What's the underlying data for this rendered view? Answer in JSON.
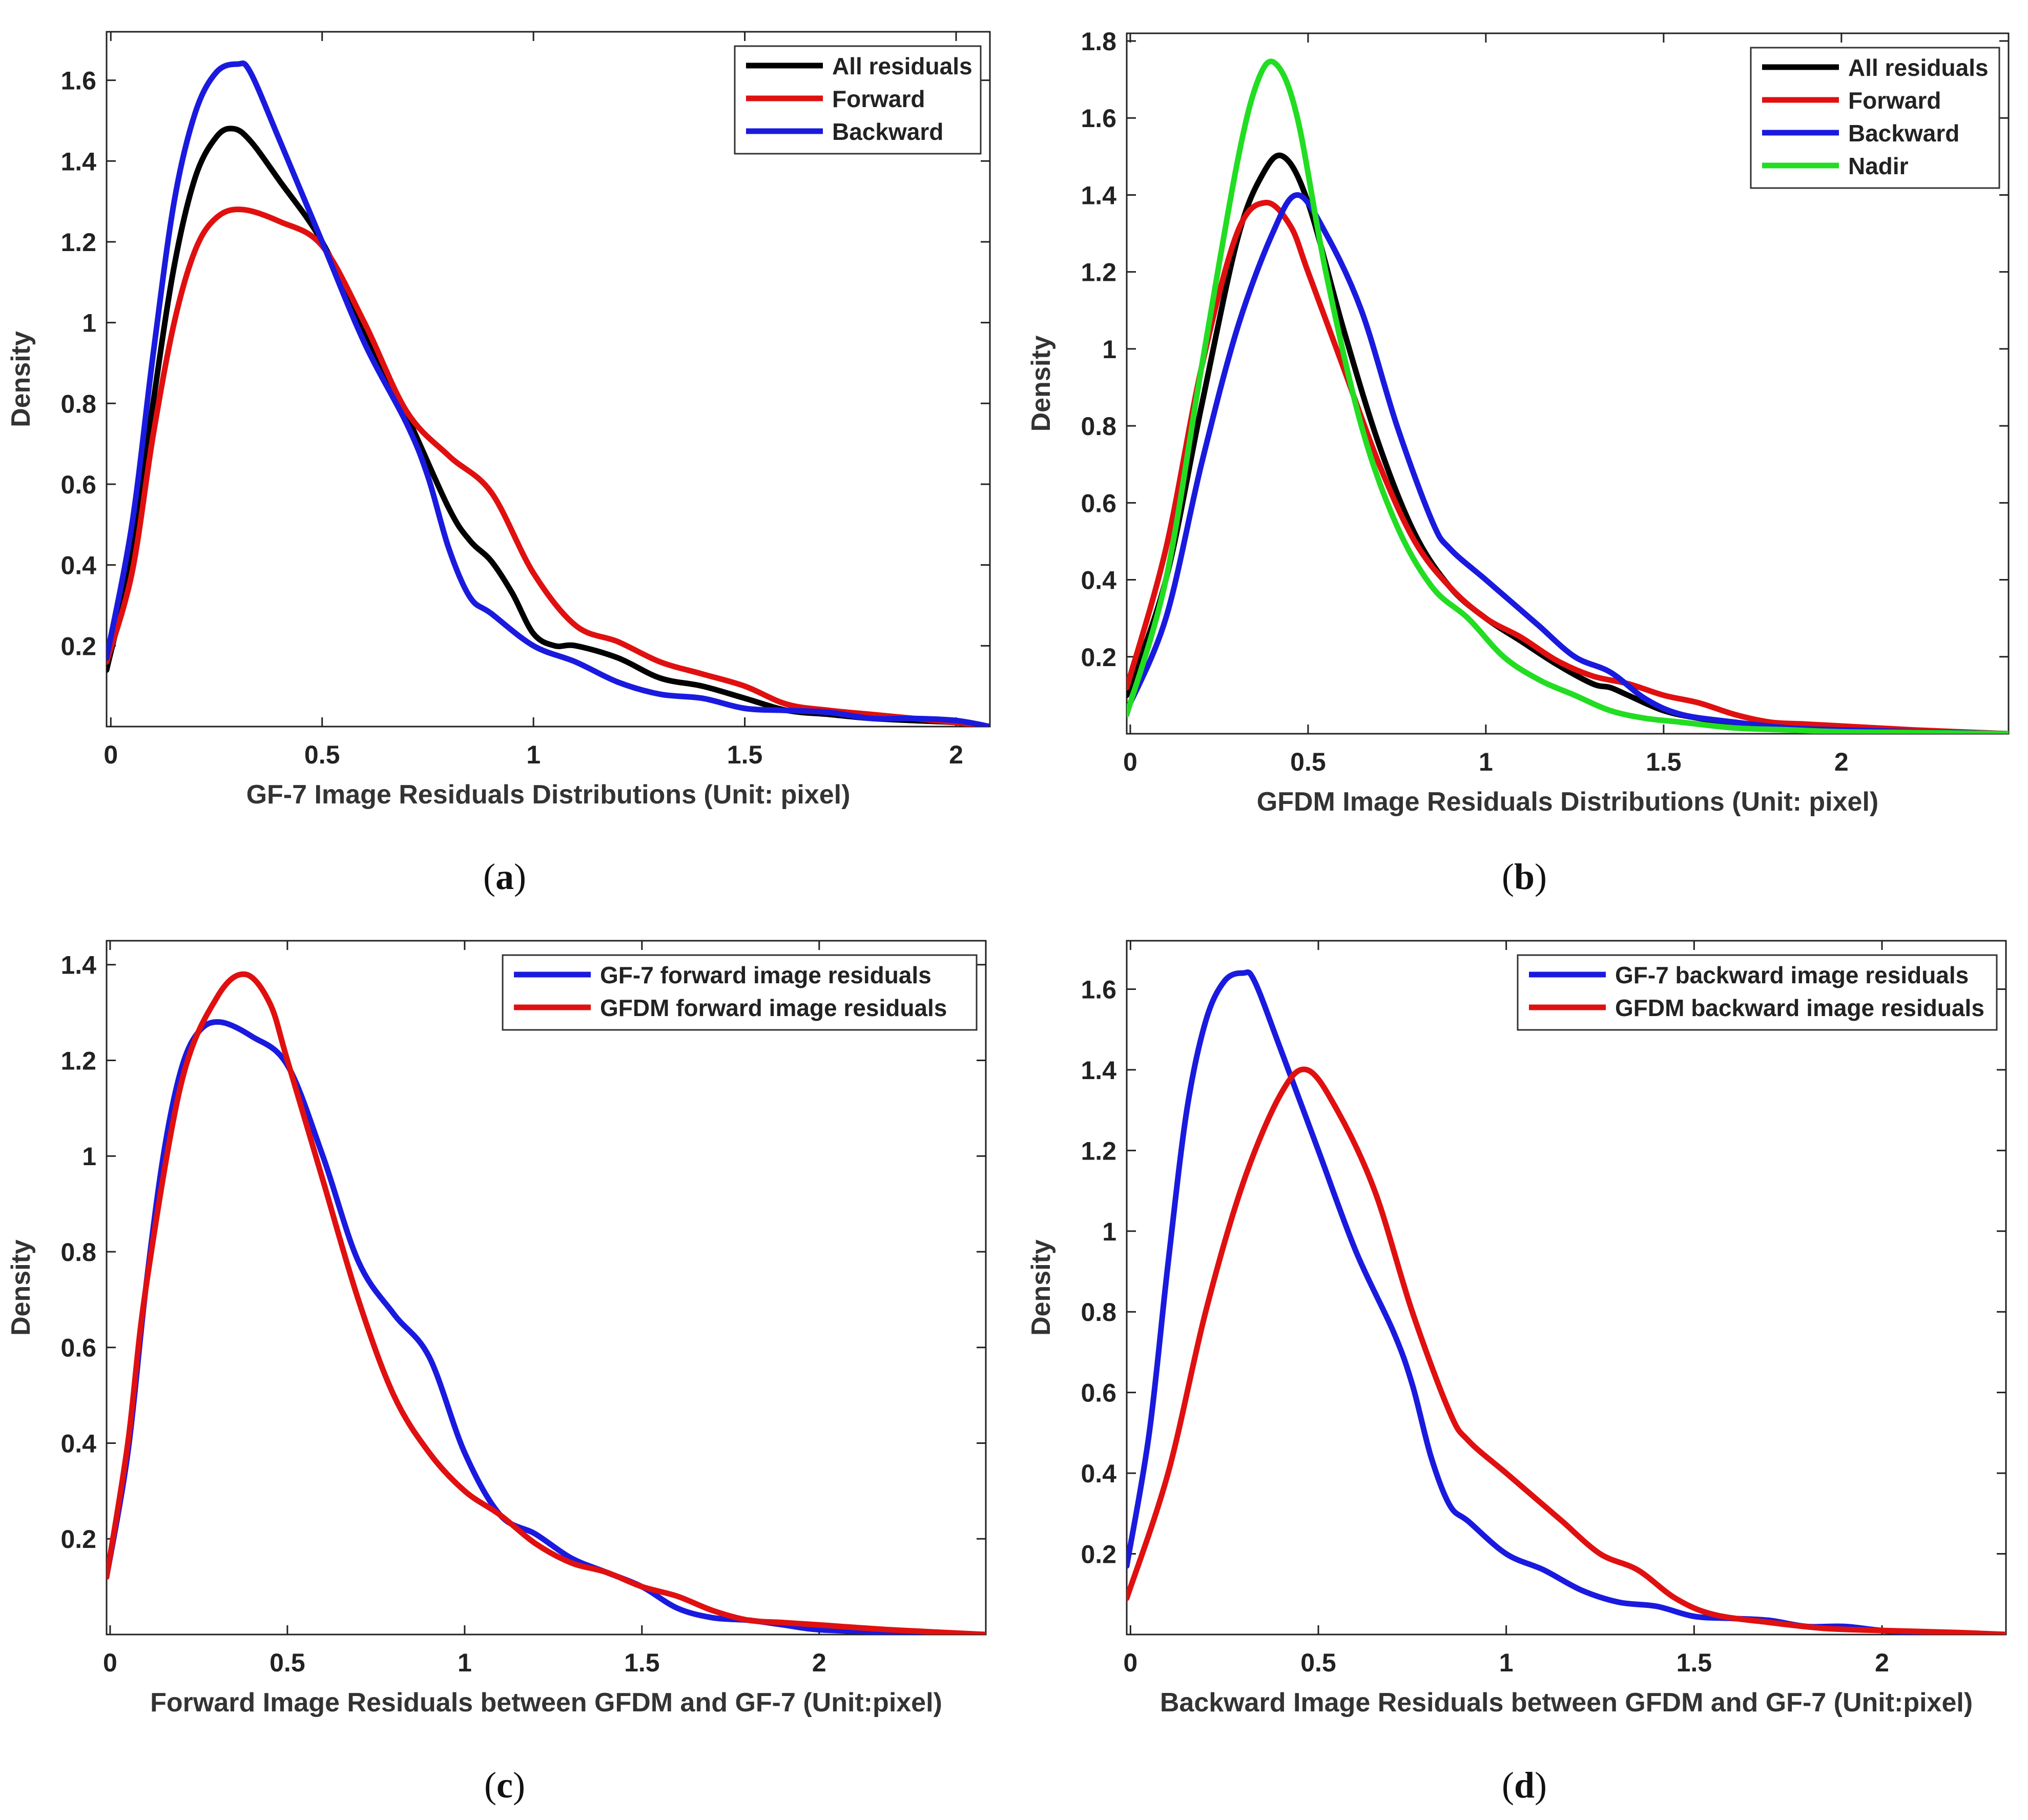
{
  "figure": {
    "panel_labels": [
      "a",
      "b",
      "c",
      "d"
    ]
  },
  "chart_data": [
    {
      "type": "line",
      "panel": "a",
      "title": "",
      "xlabel": "GF-7 Image Residuals Distributions (Unit: pixel)",
      "ylabel": "Density",
      "xlim": [
        -0.01,
        2.08
      ],
      "ylim": [
        0.0,
        1.72
      ],
      "xticks": [
        0,
        0.5,
        1,
        1.5,
        2
      ],
      "xtick_labels": [
        "0",
        "0.5",
        "1",
        "1.5",
        "2"
      ],
      "yticks": [
        0.2,
        0.4,
        0.6,
        0.8,
        1.0,
        1.2,
        1.4,
        1.6
      ],
      "ytick_labels": [
        "0.2",
        "0.4",
        "0.6",
        "0.8",
        "1",
        "1.2",
        "1.4",
        "1.6"
      ],
      "legend_position": "top-right",
      "series": [
        {
          "name": "All residuals",
          "color": "#000000",
          "x": [
            -0.01,
            0.05,
            0.1,
            0.15,
            0.2,
            0.25,
            0.29,
            0.33,
            0.4,
            0.5,
            0.6,
            0.7,
            0.8,
            0.85,
            0.9,
            0.95,
            1.0,
            1.05,
            1.1,
            1.2,
            1.3,
            1.4,
            1.5,
            1.6,
            1.7,
            1.8,
            1.9,
            2.0,
            2.08
          ],
          "y": [
            0.14,
            0.42,
            0.8,
            1.14,
            1.36,
            1.46,
            1.48,
            1.45,
            1.35,
            1.2,
            0.98,
            0.77,
            0.54,
            0.46,
            0.41,
            0.33,
            0.23,
            0.2,
            0.2,
            0.17,
            0.12,
            0.1,
            0.07,
            0.04,
            0.03,
            0.02,
            0.015,
            0.01,
            0.0
          ]
        },
        {
          "name": "Forward",
          "color": "#e01010",
          "x": [
            -0.01,
            0.05,
            0.1,
            0.15,
            0.2,
            0.25,
            0.31,
            0.4,
            0.5,
            0.6,
            0.7,
            0.8,
            0.9,
            1.0,
            1.1,
            1.2,
            1.3,
            1.4,
            1.5,
            1.6,
            1.7,
            1.8,
            1.9,
            2.0,
            2.08
          ],
          "y": [
            0.16,
            0.38,
            0.72,
            1.0,
            1.18,
            1.26,
            1.28,
            1.25,
            1.19,
            1.0,
            0.78,
            0.67,
            0.58,
            0.38,
            0.25,
            0.21,
            0.16,
            0.13,
            0.1,
            0.055,
            0.04,
            0.03,
            0.02,
            0.01,
            0.0
          ]
        },
        {
          "name": "Backward",
          "color": "#1a1adf",
          "x": [
            -0.01,
            0.05,
            0.1,
            0.15,
            0.2,
            0.25,
            0.3,
            0.33,
            0.4,
            0.5,
            0.6,
            0.7,
            0.75,
            0.8,
            0.85,
            0.9,
            1.0,
            1.1,
            1.2,
            1.3,
            1.4,
            1.5,
            1.6,
            1.7,
            1.8,
            1.9,
            2.0,
            2.08
          ],
          "y": [
            0.17,
            0.5,
            0.92,
            1.3,
            1.52,
            1.62,
            1.64,
            1.62,
            1.45,
            1.2,
            0.95,
            0.75,
            0.62,
            0.44,
            0.32,
            0.28,
            0.2,
            0.16,
            0.11,
            0.08,
            0.07,
            0.045,
            0.04,
            0.035,
            0.02,
            0.02,
            0.015,
            0.0
          ]
        }
      ]
    },
    {
      "type": "line",
      "panel": "b",
      "title": "",
      "xlabel": "GFDM Image Residuals Distributions (Unit: pixel)",
      "ylabel": "Density",
      "xlim": [
        -0.01,
        2.47
      ],
      "ylim": [
        0.0,
        1.82
      ],
      "xticks": [
        0,
        0.5,
        1,
        1.5,
        2
      ],
      "xtick_labels": [
        "0",
        "0.5",
        "1",
        "1.5",
        "2"
      ],
      "yticks": [
        0.2,
        0.4,
        0.6,
        0.8,
        1.0,
        1.2,
        1.4,
        1.6,
        1.8
      ],
      "ytick_labels": [
        "0.2",
        "0.4",
        "0.6",
        "0.8",
        "1",
        "1.2",
        "1.4",
        "1.6",
        "1.8"
      ],
      "legend_position": "top-right",
      "series": [
        {
          "name": "All residuals",
          "color": "#000000",
          "x": [
            -0.01,
            0.1,
            0.2,
            0.3,
            0.37,
            0.43,
            0.5,
            0.6,
            0.7,
            0.8,
            0.9,
            1.0,
            1.1,
            1.2,
            1.3,
            1.35,
            1.4,
            1.5,
            1.6,
            1.7,
            1.8,
            1.9,
            2.0,
            2.2,
            2.47
          ],
          "y": [
            0.1,
            0.4,
            0.85,
            1.28,
            1.45,
            1.5,
            1.38,
            1.05,
            0.75,
            0.52,
            0.38,
            0.3,
            0.24,
            0.18,
            0.13,
            0.12,
            0.1,
            0.06,
            0.04,
            0.025,
            0.02,
            0.015,
            0.01,
            0.005,
            0.0
          ]
        },
        {
          "name": "Forward",
          "color": "#e01010",
          "x": [
            -0.01,
            0.1,
            0.2,
            0.3,
            0.38,
            0.45,
            0.5,
            0.6,
            0.7,
            0.8,
            0.9,
            1.0,
            1.1,
            1.2,
            1.3,
            1.4,
            1.5,
            1.6,
            1.7,
            1.8,
            1.9,
            2.0,
            2.2,
            2.47
          ],
          "y": [
            0.12,
            0.48,
            0.95,
            1.3,
            1.38,
            1.32,
            1.2,
            0.95,
            0.7,
            0.5,
            0.38,
            0.3,
            0.25,
            0.19,
            0.15,
            0.13,
            0.1,
            0.08,
            0.05,
            0.03,
            0.025,
            0.02,
            0.01,
            0.0
          ]
        },
        {
          "name": "Backward",
          "color": "#1a1adf",
          "x": [
            -0.01,
            0.1,
            0.2,
            0.3,
            0.4,
            0.47,
            0.55,
            0.65,
            0.75,
            0.85,
            0.9,
            1.0,
            1.1,
            1.15,
            1.25,
            1.35,
            1.45,
            1.55,
            1.7,
            1.85,
            2.0,
            2.2,
            2.47
          ],
          "y": [
            0.06,
            0.3,
            0.7,
            1.05,
            1.3,
            1.4,
            1.3,
            1.1,
            0.8,
            0.55,
            0.48,
            0.4,
            0.32,
            0.28,
            0.2,
            0.16,
            0.09,
            0.05,
            0.03,
            0.015,
            0.01,
            0.005,
            0.0
          ]
        },
        {
          "name": "Nadir",
          "color": "#22dd22",
          "x": [
            -0.01,
            0.1,
            0.2,
            0.3,
            0.36,
            0.41,
            0.47,
            0.55,
            0.65,
            0.75,
            0.85,
            0.95,
            1.05,
            1.15,
            1.25,
            1.35,
            1.45,
            1.55,
            1.7,
            1.85,
            2.0,
            2.2,
            2.47
          ],
          "y": [
            0.05,
            0.4,
            0.95,
            1.48,
            1.7,
            1.74,
            1.6,
            1.2,
            0.8,
            0.54,
            0.38,
            0.3,
            0.2,
            0.14,
            0.1,
            0.06,
            0.04,
            0.03,
            0.015,
            0.01,
            0.005,
            0.003,
            0.0
          ]
        }
      ]
    },
    {
      "type": "line",
      "panel": "c",
      "title": "",
      "xlabel": "Forward Image Residuals between GFDM and GF-7 (Unit:pixel)",
      "ylabel": "Density",
      "xlim": [
        -0.01,
        2.47
      ],
      "ylim": [
        0.0,
        1.45
      ],
      "xticks": [
        0,
        0.5,
        1,
        1.5,
        2
      ],
      "xtick_labels": [
        "0",
        "0.5",
        "1",
        "1.5",
        "2"
      ],
      "yticks": [
        0.2,
        0.4,
        0.6,
        0.8,
        1.0,
        1.2,
        1.4
      ],
      "ytick_labels": [
        "0.2",
        "0.4",
        "0.6",
        "0.8",
        "1",
        "1.2",
        "1.4"
      ],
      "legend_position": "top-right",
      "series": [
        {
          "name": "GF-7 forward image residuals",
          "color": "#1a1adf",
          "x": [
            -0.01,
            0.05,
            0.1,
            0.15,
            0.2,
            0.25,
            0.31,
            0.4,
            0.5,
            0.6,
            0.7,
            0.8,
            0.9,
            1.0,
            1.1,
            1.2,
            1.3,
            1.4,
            1.5,
            1.6,
            1.7,
            1.8,
            1.9,
            2.0,
            2.2,
            2.47
          ],
          "y": [
            0.12,
            0.38,
            0.72,
            1.0,
            1.18,
            1.26,
            1.28,
            1.25,
            1.19,
            1.0,
            0.78,
            0.67,
            0.58,
            0.38,
            0.25,
            0.21,
            0.16,
            0.13,
            0.1,
            0.055,
            0.035,
            0.03,
            0.02,
            0.01,
            0.005,
            0.0
          ]
        },
        {
          "name": "GFDM forward image residuals",
          "color": "#e01010",
          "x": [
            -0.01,
            0.05,
            0.1,
            0.2,
            0.3,
            0.38,
            0.45,
            0.5,
            0.6,
            0.7,
            0.8,
            0.9,
            1.0,
            1.1,
            1.2,
            1.3,
            1.4,
            1.5,
            1.6,
            1.7,
            1.8,
            1.9,
            2.0,
            2.2,
            2.47
          ],
          "y": [
            0.12,
            0.4,
            0.72,
            1.15,
            1.33,
            1.38,
            1.32,
            1.2,
            0.95,
            0.7,
            0.5,
            0.38,
            0.3,
            0.25,
            0.19,
            0.15,
            0.13,
            0.1,
            0.08,
            0.05,
            0.03,
            0.025,
            0.02,
            0.01,
            0.0
          ]
        }
      ]
    },
    {
      "type": "line",
      "panel": "d",
      "title": "",
      "xlabel": "Backward Image Residuals between GFDM and GF-7 (Unit:pixel)",
      "ylabel": "Density",
      "xlim": [
        -0.01,
        2.33
      ],
      "ylim": [
        0.0,
        1.72
      ],
      "xticks": [
        0,
        0.5,
        1,
        1.5,
        2
      ],
      "xtick_labels": [
        "0",
        "0.5",
        "1",
        "1.5",
        "2"
      ],
      "yticks": [
        0.2,
        0.4,
        0.6,
        0.8,
        1.0,
        1.2,
        1.4,
        1.6
      ],
      "ytick_labels": [
        "0.2",
        "0.4",
        "0.6",
        "0.8",
        "1",
        "1.2",
        "1.4",
        "1.6"
      ],
      "legend_position": "top-right",
      "series": [
        {
          "name": "GF-7 backward image residuals",
          "color": "#1a1adf",
          "x": [
            -0.01,
            0.05,
            0.1,
            0.15,
            0.2,
            0.25,
            0.3,
            0.33,
            0.4,
            0.5,
            0.6,
            0.7,
            0.75,
            0.8,
            0.85,
            0.9,
            1.0,
            1.1,
            1.2,
            1.3,
            1.4,
            1.5,
            1.6,
            1.7,
            1.8,
            1.9,
            2.0,
            2.1,
            2.33
          ],
          "y": [
            0.17,
            0.5,
            0.92,
            1.3,
            1.52,
            1.62,
            1.64,
            1.62,
            1.45,
            1.2,
            0.95,
            0.75,
            0.62,
            0.44,
            0.32,
            0.28,
            0.2,
            0.16,
            0.11,
            0.08,
            0.07,
            0.045,
            0.04,
            0.035,
            0.02,
            0.02,
            0.01,
            0.005,
            0.0
          ]
        },
        {
          "name": "GFDM backward image residuals",
          "color": "#e01010",
          "x": [
            -0.01,
            0.1,
            0.2,
            0.3,
            0.4,
            0.47,
            0.55,
            0.65,
            0.75,
            0.85,
            0.9,
            1.0,
            1.1,
            1.15,
            1.25,
            1.35,
            1.45,
            1.55,
            1.7,
            1.85,
            2.0,
            2.2,
            2.33
          ],
          "y": [
            0.09,
            0.4,
            0.8,
            1.12,
            1.34,
            1.4,
            1.3,
            1.1,
            0.8,
            0.55,
            0.48,
            0.4,
            0.32,
            0.28,
            0.2,
            0.16,
            0.09,
            0.05,
            0.03,
            0.015,
            0.01,
            0.005,
            0.0
          ]
        }
      ]
    }
  ]
}
